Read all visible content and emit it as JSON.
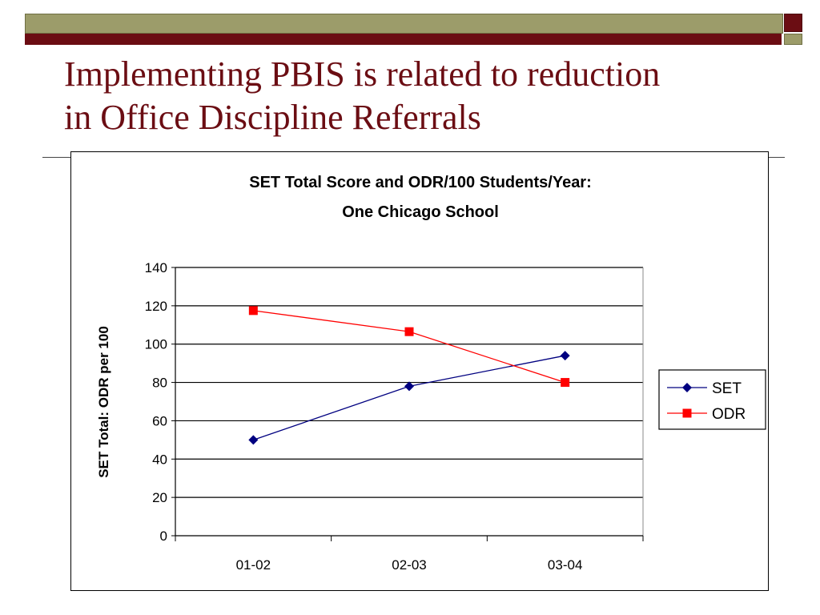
{
  "slide": {
    "title_line1": "Implementing PBIS is related to reduction",
    "title_line2": "in Office Discipline Referrals",
    "colors": {
      "title": "#6b0d13",
      "band_olive": "#9c9c6a",
      "band_maroon": "#6b0d13"
    }
  },
  "chart_data": {
    "type": "line",
    "title_line1": "SET Total Score and ODR/100 Students/Year:",
    "title_line2": "One Chicago School",
    "ylabel": "SET Total: ODR per 100",
    "xlabel": "",
    "categories": [
      "01-02",
      "02-03",
      "03-04"
    ],
    "ylim": [
      0,
      140
    ],
    "yticks": [
      0,
      20,
      40,
      60,
      80,
      100,
      120,
      140
    ],
    "grid": true,
    "legend_position": "right",
    "series": [
      {
        "name": "SET",
        "values": [
          50,
          78,
          94
        ],
        "color": "#000080",
        "marker": "diamond"
      },
      {
        "name": "ODR",
        "values": [
          117.5,
          106.5,
          80
        ],
        "color": "#ff0000",
        "marker": "square"
      }
    ]
  }
}
